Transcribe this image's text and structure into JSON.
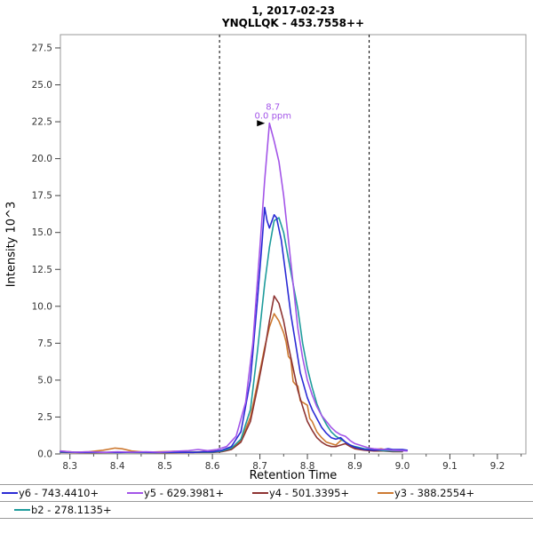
{
  "chart_data": {
    "type": "line",
    "title": "1, 2017-02-23",
    "subtitle": "YNQLLQK - 453.7558++",
    "xlabel": "Retention Time",
    "ylabel": "Intensity 10^3",
    "xlim": [
      8.28,
      9.26
    ],
    "ylim": [
      0,
      28.4
    ],
    "x_ticks": [
      8.3,
      8.4,
      8.5,
      8.6,
      8.7,
      8.8,
      8.9,
      9.0,
      9.1,
      9.2
    ],
    "x_minor_step": 0.05,
    "y_ticks": [
      0,
      2.5,
      5,
      7.5,
      10,
      12.5,
      15,
      17.5,
      20,
      22.5,
      25,
      27.5
    ],
    "boundaries": [
      8.615,
      8.93
    ],
    "boundary_color": "#000000",
    "annotation": {
      "x": 8.72,
      "y": 22.4,
      "rt_label": "8.7",
      "ppm_label": "0.0 ppm",
      "color": "#a355e8"
    },
    "draw_order": [
      3,
      2,
      4,
      0,
      1
    ],
    "legend_rows": [
      [
        0,
        1,
        2,
        3
      ],
      [
        4
      ]
    ],
    "series": [
      {
        "name": "y6 - 743.4410+",
        "color": "#2b2bd5",
        "points": [
          [
            8.28,
            0.15
          ],
          [
            8.32,
            0.1
          ],
          [
            8.36,
            0.12
          ],
          [
            8.4,
            0.1
          ],
          [
            8.44,
            0.12
          ],
          [
            8.48,
            0.1
          ],
          [
            8.52,
            0.12
          ],
          [
            8.56,
            0.1
          ],
          [
            8.58,
            0.15
          ],
          [
            8.6,
            0.15
          ],
          [
            8.62,
            0.25
          ],
          [
            8.64,
            0.5
          ],
          [
            8.66,
            1.5
          ],
          [
            8.68,
            5.0
          ],
          [
            8.695,
            10.5
          ],
          [
            8.705,
            14.5
          ],
          [
            8.71,
            16.7
          ],
          [
            8.715,
            15.8
          ],
          [
            8.72,
            15.3
          ],
          [
            8.73,
            16.2
          ],
          [
            8.735,
            16.0
          ],
          [
            8.745,
            14.5
          ],
          [
            8.755,
            12.0
          ],
          [
            8.765,
            9.5
          ],
          [
            8.775,
            7.5
          ],
          [
            8.785,
            5.5
          ],
          [
            8.8,
            3.8
          ],
          [
            8.81,
            3.0
          ],
          [
            8.82,
            2.4
          ],
          [
            8.83,
            1.8
          ],
          [
            8.84,
            1.4
          ],
          [
            8.85,
            1.1
          ],
          [
            8.86,
            1.0
          ],
          [
            8.87,
            1.1
          ],
          [
            8.88,
            0.8
          ],
          [
            8.89,
            0.6
          ],
          [
            8.9,
            0.45
          ],
          [
            8.92,
            0.3
          ],
          [
            8.94,
            0.25
          ],
          [
            8.96,
            0.3
          ],
          [
            8.97,
            0.35
          ],
          [
            8.98,
            0.3
          ],
          [
            9.0,
            0.3
          ],
          [
            9.01,
            0.25
          ]
        ]
      },
      {
        "name": "y5 - 629.3981+",
        "color": "#a355e8",
        "points": [
          [
            8.28,
            0.2
          ],
          [
            8.31,
            0.12
          ],
          [
            8.34,
            0.15
          ],
          [
            8.37,
            0.1
          ],
          [
            8.4,
            0.15
          ],
          [
            8.43,
            0.12
          ],
          [
            8.46,
            0.15
          ],
          [
            8.49,
            0.12
          ],
          [
            8.52,
            0.18
          ],
          [
            8.55,
            0.22
          ],
          [
            8.57,
            0.3
          ],
          [
            8.59,
            0.22
          ],
          [
            8.61,
            0.3
          ],
          [
            8.63,
            0.5
          ],
          [
            8.65,
            1.2
          ],
          [
            8.67,
            3.5
          ],
          [
            8.685,
            7.5
          ],
          [
            8.7,
            14.0
          ],
          [
            8.71,
            18.5
          ],
          [
            8.72,
            22.4
          ],
          [
            8.73,
            21.2
          ],
          [
            8.74,
            19.8
          ],
          [
            8.75,
            17.5
          ],
          [
            8.76,
            14.5
          ],
          [
            8.77,
            11.5
          ],
          [
            8.78,
            8.5
          ],
          [
            8.79,
            6.5
          ],
          [
            8.8,
            5.0
          ],
          [
            8.81,
            4.0
          ],
          [
            8.82,
            3.2
          ],
          [
            8.83,
            2.6
          ],
          [
            8.84,
            2.2
          ],
          [
            8.85,
            1.8
          ],
          [
            8.86,
            1.5
          ],
          [
            8.87,
            1.3
          ],
          [
            8.88,
            1.2
          ],
          [
            8.89,
            0.9
          ],
          [
            8.9,
            0.7
          ],
          [
            8.91,
            0.6
          ],
          [
            8.92,
            0.5
          ],
          [
            8.93,
            0.4
          ],
          [
            8.94,
            0.35
          ],
          [
            8.96,
            0.3
          ],
          [
            8.98,
            0.25
          ],
          [
            9.0,
            0.22
          ],
          [
            9.01,
            0.2
          ]
        ]
      },
      {
        "name": "y4 - 501.3395+",
        "color": "#8e3432",
        "points": [
          [
            8.28,
            0.1
          ],
          [
            8.35,
            0.08
          ],
          [
            8.42,
            0.1
          ],
          [
            8.5,
            0.08
          ],
          [
            8.56,
            0.1
          ],
          [
            8.6,
            0.1
          ],
          [
            8.62,
            0.15
          ],
          [
            8.64,
            0.3
          ],
          [
            8.66,
            0.8
          ],
          [
            8.68,
            2.2
          ],
          [
            8.695,
            4.5
          ],
          [
            8.71,
            7.0
          ],
          [
            8.72,
            9.0
          ],
          [
            8.73,
            10.7
          ],
          [
            8.74,
            10.2
          ],
          [
            8.75,
            9.0
          ],
          [
            8.76,
            7.3
          ],
          [
            8.77,
            5.8
          ],
          [
            8.78,
            4.3
          ],
          [
            8.79,
            3.2
          ],
          [
            8.8,
            2.2
          ],
          [
            8.81,
            1.6
          ],
          [
            8.82,
            1.1
          ],
          [
            8.83,
            0.8
          ],
          [
            8.84,
            0.6
          ],
          [
            8.85,
            0.5
          ],
          [
            8.86,
            0.5
          ],
          [
            8.87,
            0.6
          ],
          [
            8.88,
            0.7
          ],
          [
            8.89,
            0.5
          ],
          [
            8.9,
            0.35
          ],
          [
            8.92,
            0.25
          ],
          [
            8.94,
            0.2
          ],
          [
            8.96,
            0.2
          ],
          [
            8.98,
            0.15
          ],
          [
            9.0,
            0.15
          ]
        ]
      },
      {
        "name": "y3 - 388.2554+",
        "color": "#cd7a32",
        "points": [
          [
            8.28,
            0.2
          ],
          [
            8.31,
            0.12
          ],
          [
            8.34,
            0.15
          ],
          [
            8.37,
            0.25
          ],
          [
            8.395,
            0.4
          ],
          [
            8.41,
            0.35
          ],
          [
            8.43,
            0.2
          ],
          [
            8.46,
            0.12
          ],
          [
            8.49,
            0.15
          ],
          [
            8.52,
            0.18
          ],
          [
            8.55,
            0.12
          ],
          [
            8.58,
            0.15
          ],
          [
            8.6,
            0.18
          ],
          [
            8.62,
            0.22
          ],
          [
            8.64,
            0.35
          ],
          [
            8.66,
            0.9
          ],
          [
            8.68,
            2.5
          ],
          [
            8.695,
            4.8
          ],
          [
            8.71,
            7.2
          ],
          [
            8.72,
            8.6
          ],
          [
            8.73,
            9.5
          ],
          [
            8.74,
            9.0
          ],
          [
            8.75,
            8.2
          ],
          [
            8.755,
            7.6
          ],
          [
            8.76,
            6.6
          ],
          [
            8.765,
            6.4
          ],
          [
            8.77,
            4.9
          ],
          [
            8.775,
            4.7
          ],
          [
            8.78,
            4.6
          ],
          [
            8.785,
            3.6
          ],
          [
            8.79,
            3.5
          ],
          [
            8.8,
            3.3
          ],
          [
            8.805,
            2.4
          ],
          [
            8.81,
            2.2
          ],
          [
            8.82,
            1.5
          ],
          [
            8.83,
            1.1
          ],
          [
            8.84,
            0.8
          ],
          [
            8.85,
            0.7
          ],
          [
            8.86,
            0.6
          ],
          [
            8.87,
            0.9
          ],
          [
            8.875,
            0.95
          ],
          [
            8.88,
            0.8
          ],
          [
            8.89,
            0.55
          ],
          [
            8.9,
            0.4
          ],
          [
            8.92,
            0.3
          ],
          [
            8.94,
            0.28
          ],
          [
            8.955,
            0.35
          ],
          [
            8.97,
            0.25
          ],
          [
            8.98,
            0.22
          ],
          [
            9.0,
            0.2
          ]
        ]
      },
      {
        "name": "b2 - 278.1135+",
        "color": "#1f9c9c",
        "points": [
          [
            8.28,
            0.12
          ],
          [
            8.35,
            0.1
          ],
          [
            8.42,
            0.1
          ],
          [
            8.5,
            0.1
          ],
          [
            8.56,
            0.12
          ],
          [
            8.6,
            0.12
          ],
          [
            8.62,
            0.2
          ],
          [
            8.64,
            0.4
          ],
          [
            8.66,
            1.0
          ],
          [
            8.68,
            3.0
          ],
          [
            8.695,
            7.0
          ],
          [
            8.71,
            11.5
          ],
          [
            8.72,
            14.0
          ],
          [
            8.73,
            15.8
          ],
          [
            8.74,
            16.0
          ],
          [
            8.75,
            15.0
          ],
          [
            8.76,
            13.2
          ],
          [
            8.77,
            11.5
          ],
          [
            8.78,
            9.8
          ],
          [
            8.79,
            7.5
          ],
          [
            8.8,
            5.8
          ],
          [
            8.81,
            4.5
          ],
          [
            8.82,
            3.4
          ],
          [
            8.83,
            2.6
          ],
          [
            8.84,
            2.0
          ],
          [
            8.85,
            1.5
          ],
          [
            8.86,
            1.2
          ],
          [
            8.87,
            1.0
          ],
          [
            8.88,
            0.8
          ],
          [
            8.89,
            0.6
          ],
          [
            8.9,
            0.5
          ],
          [
            8.92,
            0.35
          ],
          [
            8.94,
            0.28
          ],
          [
            8.96,
            0.22
          ],
          [
            8.98,
            0.2
          ],
          [
            9.0,
            0.2
          ]
        ]
      }
    ]
  }
}
